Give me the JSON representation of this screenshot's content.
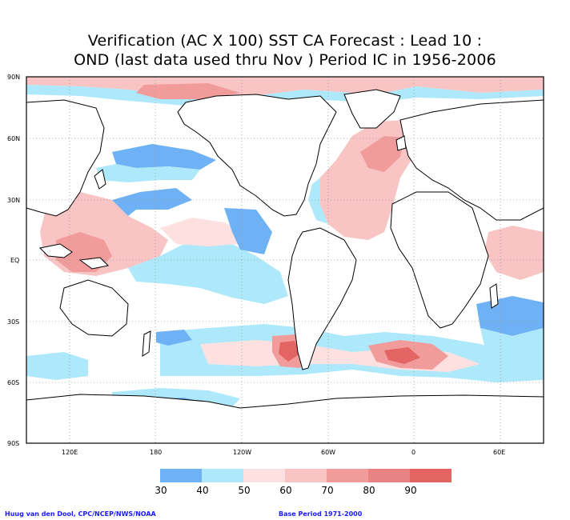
{
  "title_line1": "Verification (AC X 100) SST CA Forecast : Lead 10 :",
  "title_line2": "OND (last data used thru Nov ) Period IC in 1956-2006",
  "lat_labels": [
    "90N",
    "60N",
    "30N",
    "EQ",
    "30S",
    "60S",
    "90S"
  ],
  "lon_labels": [
    "120E",
    "180",
    "120W",
    "60W",
    "0",
    "60E"
  ],
  "legend": {
    "labels": [
      "30",
      "40",
      "50",
      "60",
      "70",
      "80",
      "90"
    ],
    "colors": [
      "#6eb2f5",
      "#aee9fb",
      "#fde1e1",
      "#f8c4c4",
      "#f19b9b",
      "#e98383",
      "#e46464"
    ]
  },
  "credit_left": "Huug van den Dool, CPC/NCEP/NWS/NOAA",
  "credit_right": "Base Period 1971-2000"
}
